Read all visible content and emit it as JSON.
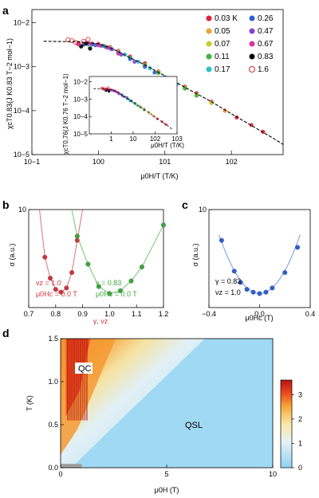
{
  "panel_labels": {
    "a": "a",
    "b": "b",
    "c": "c",
    "d": "d"
  },
  "chart_data": [
    {
      "panel": "a",
      "type": "scatter",
      "scale": "log-log",
      "ylabel": "χcT0.83(J K0.83 T−2 mol−1)",
      "xlabel": "μ0H/T (T/K)",
      "xlim": [
        0.1,
        600
      ],
      "ylim": [
        1e-05,
        0.02
      ],
      "x_ticks": [
        "10−1",
        "100",
        "101",
        "102"
      ],
      "y_ticks": [
        "10−5",
        "10−4",
        "10−3",
        "10−2"
      ],
      "legend": [
        {
          "label": "0.03 K",
          "color": "#e0213a",
          "marker": "filled"
        },
        {
          "label": "0.05",
          "color": "#f2a12f",
          "marker": "filled"
        },
        {
          "label": "0.07",
          "color": "#c6cf2a",
          "marker": "filled"
        },
        {
          "label": "0.11",
          "color": "#3db33a",
          "marker": "filled"
        },
        {
          "label": "0.17",
          "color": "#2fc2c9",
          "marker": "filled"
        },
        {
          "label": "0.26",
          "color": "#2f5fd0",
          "marker": "filled"
        },
        {
          "label": "0.47",
          "color": "#8a3fd1",
          "marker": "filled"
        },
        {
          "label": "0.67",
          "color": "#d9359e",
          "marker": "filled"
        },
        {
          "label": "0.83",
          "color": "#000000",
          "marker": "filled"
        },
        {
          "label": "1.6",
          "color": "#e0213a",
          "marker": "open"
        }
      ],
      "fit_curve": {
        "x": [
          0.15,
          0.5,
          1,
          1.5,
          2,
          3,
          5,
          10,
          20,
          50,
          100,
          200,
          400,
          600
        ],
        "y": [
          0.0038,
          0.0037,
          0.0033,
          0.0027,
          0.0022,
          0.0016,
          0.0011,
          0.00062,
          0.00034,
          0.00016,
          8.5e-05,
          4.6e-05,
          2.5e-05,
          1.7e-05
        ]
      },
      "series_points": [
        {
          "name": "0.03 K",
          "color": "#e0213a",
          "x": [
            0.6,
            0.8,
            1,
            1.5,
            2,
            3,
            5,
            8,
            12,
            20,
            30,
            50,
            80,
            120,
            200,
            300
          ],
          "y": [
            0.0033,
            0.0034,
            0.0033,
            0.0028,
            0.0023,
            0.0017,
            0.0012,
            0.00078,
            0.00055,
            0.00035,
            0.00025,
            0.00016,
            0.0001,
            7e-05,
            4.7e-05,
            3.3e-05
          ]
        },
        {
          "name": "0.05",
          "color": "#f2a12f",
          "x": [
            0.5,
            0.8,
            1.2,
            2,
            3,
            5,
            8,
            12,
            20,
            30,
            50,
            80
          ],
          "y": [
            0.0035,
            0.0034,
            0.003,
            0.0022,
            0.0016,
            0.0011,
            0.00074,
            0.00052,
            0.00033,
            0.00023,
            0.00015,
            0.0001
          ]
        },
        {
          "name": "0.07",
          "color": "#c6cf2a",
          "x": [
            1,
            1.5,
            2,
            3,
            5,
            8,
            12,
            20,
            30,
            50
          ],
          "y": [
            0.0031,
            0.0027,
            0.0022,
            0.0016,
            0.0011,
            0.00075,
            0.00052,
            0.00033,
            0.00023,
            0.00015
          ]
        },
        {
          "name": "0.11",
          "color": "#3db33a",
          "x": [
            0.8,
            1.2,
            2,
            3,
            5,
            8,
            12,
            20,
            30
          ],
          "y": [
            0.0032,
            0.003,
            0.0021,
            0.0016,
            0.0011,
            0.00072,
            0.0005,
            0.00032,
            0.00022
          ]
        },
        {
          "name": "0.17",
          "color": "#2fc2c9",
          "x": [
            0.7,
            1,
            1.5,
            2.5,
            4,
            6,
            10,
            15
          ],
          "y": [
            0.0032,
            0.0031,
            0.0026,
            0.0019,
            0.0013,
            0.00092,
            0.00058,
            0.0004
          ]
        },
        {
          "name": "0.26",
          "color": "#2f5fd0",
          "x": [
            0.6,
            0.9,
            1.3,
            2,
            3,
            5,
            7
          ],
          "y": [
            0.0032,
            0.0031,
            0.0028,
            0.0021,
            0.0015,
            0.001,
            0.00074
          ]
        },
        {
          "name": "0.47",
          "color": "#8a3fd1",
          "x": [
            0.5,
            0.8,
            1.1,
            1.6,
            2.2,
            3.5
          ],
          "y": [
            0.0033,
            0.0033,
            0.003,
            0.0025,
            0.0019,
            0.0013
          ]
        },
        {
          "name": "0.67",
          "color": "#d9359e",
          "x": [
            0.5,
            0.7,
            1,
            1.4,
            2
          ],
          "y": [
            0.0034,
            0.0034,
            0.0031,
            0.0027,
            0.002
          ]
        },
        {
          "name": "0.83",
          "color": "#000000",
          "x": [
            0.55,
            0.65,
            0.75
          ],
          "y": [
            0.0029,
            0.0034,
            0.0026
          ]
        },
        {
          "name": "1.6",
          "color": "#e0213a",
          "x": [
            0.35,
            0.4,
            0.45,
            0.5,
            0.6,
            0.7
          ],
          "y": [
            0.0041,
            0.0039,
            0.0036,
            0.0033,
            0.0038,
            0.0042
          ]
        }
      ]
    },
    {
      "panel": "a-inset",
      "type": "scatter",
      "scale": "log-log",
      "ylabel": "χcT0.76(J K0.76 T−2 mol−1)",
      "xlabel": "μ0H/T (T/K)",
      "xlim": [
        0.1,
        1000
      ],
      "ylim": [
        1e-05,
        0.02
      ],
      "x_ticks": [
        "1",
        "10",
        "102",
        "103"
      ],
      "y_ticks": [
        "10−5",
        "10−4",
        "10−3",
        "10−2"
      ]
    },
    {
      "panel": "b",
      "type": "line",
      "ylabel": "σ (a.u.)",
      "xlabel": "γ, νz",
      "xlim": [
        0.7,
        1.2
      ],
      "ylim": [
        6.5,
        10
      ],
      "x_ticks": [
        "0.7",
        "0.8",
        "0.9",
        "1.0",
        "1.1",
        "1.2"
      ],
      "y_ticks": [
        "10"
      ],
      "series": [
        {
          "name": "νz = 1.0",
          "color": "#d3343a",
          "x": [
            0.76,
            0.78,
            0.8,
            0.82,
            0.84,
            0.86,
            0.88
          ],
          "y": [
            8.3,
            7.55,
            7.15,
            7.05,
            7.2,
            7.75,
            8.9
          ]
        },
        {
          "name": "γ = 0.83",
          "color": "#3aaa3a",
          "x": [
            0.88,
            0.92,
            0.96,
            1.0,
            1.04,
            1.08,
            1.12,
            1.2
          ],
          "y": [
            9.05,
            8.05,
            7.25,
            7.0,
            7.1,
            7.45,
            7.95,
            9.45
          ]
        }
      ],
      "annotations": {
        "red_1": "νz = 1.0",
        "red_2": "μ0Hc = 0.0 T",
        "green_1": "γ = 0.83",
        "green_2": "μ0Hc = 0.0 T"
      }
    },
    {
      "panel": "c",
      "type": "line",
      "ylabel": "σ (a.u.)",
      "xlabel": "μ0Hc (T)",
      "xlim": [
        -0.4,
        0.4
      ],
      "ylim": [
        6.5,
        10
      ],
      "x_ticks": [
        "−0.4",
        "0.0",
        "0.4"
      ],
      "y_ticks": [
        "10"
      ],
      "series": [
        {
          "name": "fit",
          "color": "#2f5fd0",
          "x": [
            -0.3,
            -0.2,
            -0.15,
            -0.1,
            -0.05,
            0.0,
            0.05,
            0.1,
            0.2,
            0.3
          ],
          "y": [
            8.9,
            7.8,
            7.4,
            7.15,
            7.05,
            7.0,
            7.05,
            7.2,
            7.75,
            8.65
          ]
        }
      ],
      "annotations": {
        "line1": "γ = 0.83",
        "line2": "νz = 1.0"
      }
    },
    {
      "panel": "d",
      "type": "heatmap",
      "ylabel": "T (K)",
      "xlabel": "μ0H (T)",
      "xlim": [
        0,
        10
      ],
      "ylim": [
        0,
        1.5
      ],
      "x_ticks": [
        "0",
        "5",
        "10"
      ],
      "y_ticks": [
        "0.0",
        "0.5",
        "1.0",
        "1.5"
      ],
      "colorbar": {
        "min": 0,
        "max": 3.6,
        "ticks": [
          "0",
          "1",
          "2",
          "3"
        ]
      },
      "regions": {
        "qc": "QC",
        "qsl": "QSL"
      }
    }
  ]
}
